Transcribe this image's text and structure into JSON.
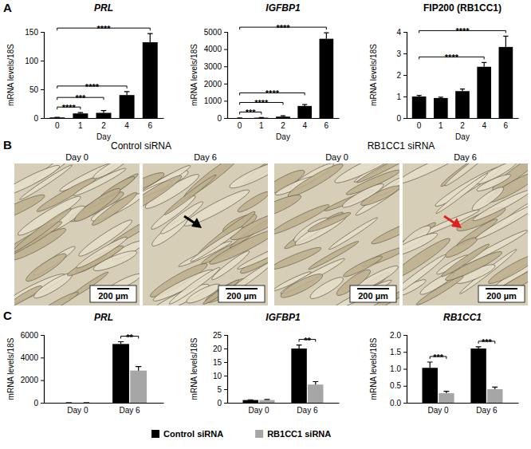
{
  "panel_labels": [
    "A",
    "B",
    "C"
  ],
  "chart_data": [
    {
      "type": "bar",
      "title": "PRL",
      "xlabel": "Day",
      "ylabel": "mRNA levels/18S",
      "categories": [
        "0",
        "1",
        "2",
        "4",
        "6"
      ],
      "values": [
        1,
        8,
        9,
        40,
        132
      ],
      "errors": [
        0.3,
        1.5,
        4,
        6,
        15
      ],
      "color": "#000000",
      "ylim": [
        0,
        150
      ],
      "yticks": [
        0,
        50,
        100,
        150
      ],
      "annotations": [
        {
          "from": "0",
          "to": "1",
          "text": "****"
        },
        {
          "from": "0",
          "to": "2",
          "text": "***"
        },
        {
          "from": "0",
          "to": "4",
          "text": "****"
        },
        {
          "from": "0",
          "to": "6",
          "text": "****"
        }
      ]
    },
    {
      "type": "bar",
      "title": "IGFBP1",
      "xlabel": "Day",
      "ylabel": "mRNA levels/18S",
      "categories": [
        "0",
        "1",
        "2",
        "4",
        "6"
      ],
      "values": [
        1,
        20,
        80,
        700,
        4600
      ],
      "errors": [
        0.5,
        5,
        50,
        80,
        350
      ],
      "color": "#000000",
      "ylim": [
        0,
        5000
      ],
      "yticks": [
        0,
        1000,
        2000,
        3000,
        4000,
        5000
      ],
      "annotations": [
        {
          "from": "0",
          "to": "1",
          "text": "***"
        },
        {
          "from": "0",
          "to": "2",
          "text": "****"
        },
        {
          "from": "0",
          "to": "4",
          "text": "****"
        },
        {
          "from": "0",
          "to": "6",
          "text": "****"
        }
      ]
    },
    {
      "type": "bar",
      "title": "FIP200 (RB1CC1)",
      "xlabel": "Day",
      "ylabel": "mRNA levels/18S",
      "categories": [
        "0",
        "1",
        "2",
        "4",
        "6"
      ],
      "values": [
        1.0,
        0.93,
        1.25,
        2.38,
        3.3
      ],
      "errors": [
        0.05,
        0.04,
        0.1,
        0.2,
        0.5
      ],
      "color": "#000000",
      "ylim": [
        0,
        4
      ],
      "yticks": [
        0,
        1,
        2,
        3,
        4
      ],
      "annotations": [
        {
          "from": "0",
          "to": "4",
          "text": "****"
        },
        {
          "from": "0",
          "to": "6",
          "text": "****"
        }
      ]
    },
    {
      "type": "bar",
      "title": "PRL",
      "ylabel": "mRNA levels/18S",
      "categories": [
        "Day 0",
        "Day 6"
      ],
      "series": [
        {
          "color": "#000000",
          "values": [
            1,
            5200
          ],
          "errors": [
            0,
            200
          ]
        },
        {
          "color": "#a6a6a6",
          "values": [
            1,
            2850
          ],
          "errors": [
            0,
            350
          ]
        }
      ],
      "ylim": [
        0,
        6000
      ],
      "yticks": [
        0,
        2000,
        4000,
        6000
      ],
      "annotations": [
        {
          "category": "Day 6",
          "text": "**"
        }
      ]
    },
    {
      "type": "bar",
      "title": "IGFBP1",
      "ylabel": "mRNA levels/18S",
      "categories": [
        "Day 0",
        "Day 6"
      ],
      "series": [
        {
          "name": "Control siRNA",
          "color": "#000000",
          "values": [
            1.0,
            20
          ],
          "errors": [
            0.1,
            1.3
          ]
        },
        {
          "name": "RB1CC1 siRNA",
          "color": "#a6a6a6",
          "values": [
            1.0,
            6.7
          ],
          "errors": [
            0.2,
            1.1
          ]
        }
      ],
      "ylim": [
        0,
        25
      ],
      "yticks": [
        0,
        5,
        10,
        15,
        20,
        25
      ],
      "legend": "bottom",
      "annotations": [
        {
          "category": "Day 6",
          "text": "**"
        }
      ]
    },
    {
      "type": "bar",
      "title": "RB1CC1",
      "ylabel": "mRNA levels/18S",
      "categories": [
        "Day 0",
        "Day 6"
      ],
      "series": [
        {
          "color": "#000000",
          "values": [
            1.03,
            1.6
          ],
          "errors": [
            0.17,
            0.05
          ]
        },
        {
          "color": "#a6a6a6",
          "values": [
            0.28,
            0.4
          ],
          "errors": [
            0.06,
            0.06
          ]
        }
      ],
      "ylim": [
        0,
        2
      ],
      "yticks": [
        {
          "value": 0,
          "label": "0.0"
        },
        0.5,
        {
          "value": 1,
          "label": "1.0"
        },
        1.5,
        {
          "value": 2,
          "label": "2.0"
        }
      ],
      "annotations": [
        {
          "category": "Day 0",
          "text": "***"
        },
        {
          "category": "Day 6",
          "text": "***"
        }
      ]
    }
  ],
  "micrographs": {
    "groups": [
      {
        "label": "Control siRNA",
        "images": [
          {
            "label": "Day 0",
            "scale_bar": "200 µm"
          },
          {
            "label": "Day 6",
            "scale_bar": "200 µm"
          }
        ]
      },
      {
        "label": "RB1CC1 siRNA",
        "images": [
          {
            "label": "Day 0",
            "scale_bar": "200 µm"
          },
          {
            "label": "Day 6",
            "scale_bar": "200 µm"
          }
        ]
      }
    ]
  }
}
